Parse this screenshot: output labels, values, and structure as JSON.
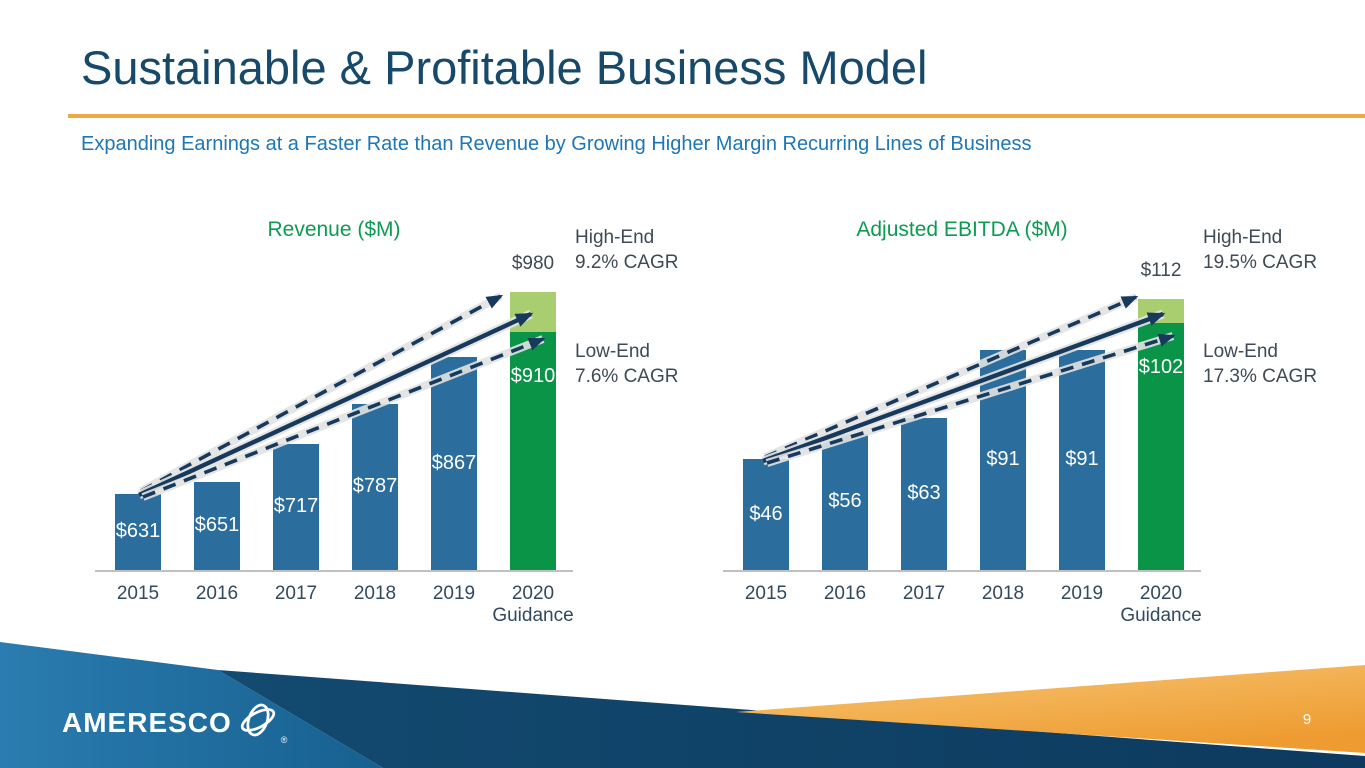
{
  "slide": {
    "title": "Sustainable & Profitable Business Model",
    "subtitle": "Expanding Earnings at a Faster Rate than Revenue by Growing Higher Margin Recurring Lines of Business",
    "page_number": "9",
    "logo_text": "AMERESCO",
    "logo_registered_mark": "®",
    "colors": {
      "title_navy": "#17496B",
      "subtitle_blue": "#1C76B8",
      "divider_orange": "#EDA843",
      "chart_title_green": "#0D9B52",
      "annotation_slate": "#3E4A55",
      "axis_label_navy": "#32495E",
      "bar_blue": "#2B6D9C",
      "guidance_green_dark": "#0A9448",
      "guidance_green_light": "#A9CE70",
      "arrow_navy": "#16395C",
      "arrow_glow_gray": "#E2E2E2",
      "axis_gray": "#C0C0C0",
      "footer_blue_light": "#2B7CB0",
      "footer_blue_mid": "#16608F",
      "footer_navy_light": "#134A70",
      "footer_navy_dark": "#0D3A5E",
      "footer_orange_light": "#F7C675",
      "footer_orange_deep": "#EE9C31",
      "bar_label_white": "#FFFFFF"
    }
  },
  "chart_data": [
    {
      "type": "bar",
      "title": "Revenue ($M)",
      "categories": [
        "2015",
        "2016",
        "2017",
        "2018",
        "2019",
        "2020\nGuidance"
      ],
      "values": [
        631,
        651,
        717,
        787,
        867
      ],
      "value_labels": [
        "$631",
        "$651",
        "$717",
        "$787",
        "$867"
      ],
      "guidance": {
        "low": 910,
        "high": 980,
        "low_label": "$910",
        "high_label": "$980"
      },
      "annotations": {
        "high_end": {
          "title": "High-End",
          "cagr": "9.2% CAGR"
        },
        "low_end": {
          "title": "Low-End",
          "cagr": "7.6% CAGR"
        }
      },
      "xlabel": "",
      "ylabel": "",
      "ylim": [
        500,
        1000
      ],
      "grid": false,
      "legend": "none",
      "notes": "Truncated y-axis; 2020 Guidance bar is stacked: dark green to low-end 910, light green cap to high-end 980; dashed/solid growth arrows from 2015 bar to 2020 bar"
    },
    {
      "type": "bar",
      "title": "Adjusted EBITDA ($M)",
      "categories": [
        "2015",
        "2016",
        "2017",
        "2018",
        "2019",
        "2020\nGuidance"
      ],
      "values": [
        46,
        56,
        63,
        91,
        91
      ],
      "value_labels": [
        "$46",
        "$56",
        "$63",
        "$91",
        "$91"
      ],
      "guidance": {
        "low": 102,
        "high": 112,
        "low_label": "$102",
        "high_label": "$112"
      },
      "annotations": {
        "high_end": {
          "title": "High-End",
          "cagr": "19.5% CAGR"
        },
        "low_end": {
          "title": "Low-End",
          "cagr": "17.3% CAGR"
        }
      },
      "xlabel": "",
      "ylabel": "",
      "ylim": [
        0,
        120
      ],
      "grid": false,
      "legend": "none",
      "notes": "2020 Guidance bar stacked: dark green to low-end 102, light green cap to high-end 112; dashed/solid growth arrows from 2015 bar to 2020 bar"
    }
  ]
}
